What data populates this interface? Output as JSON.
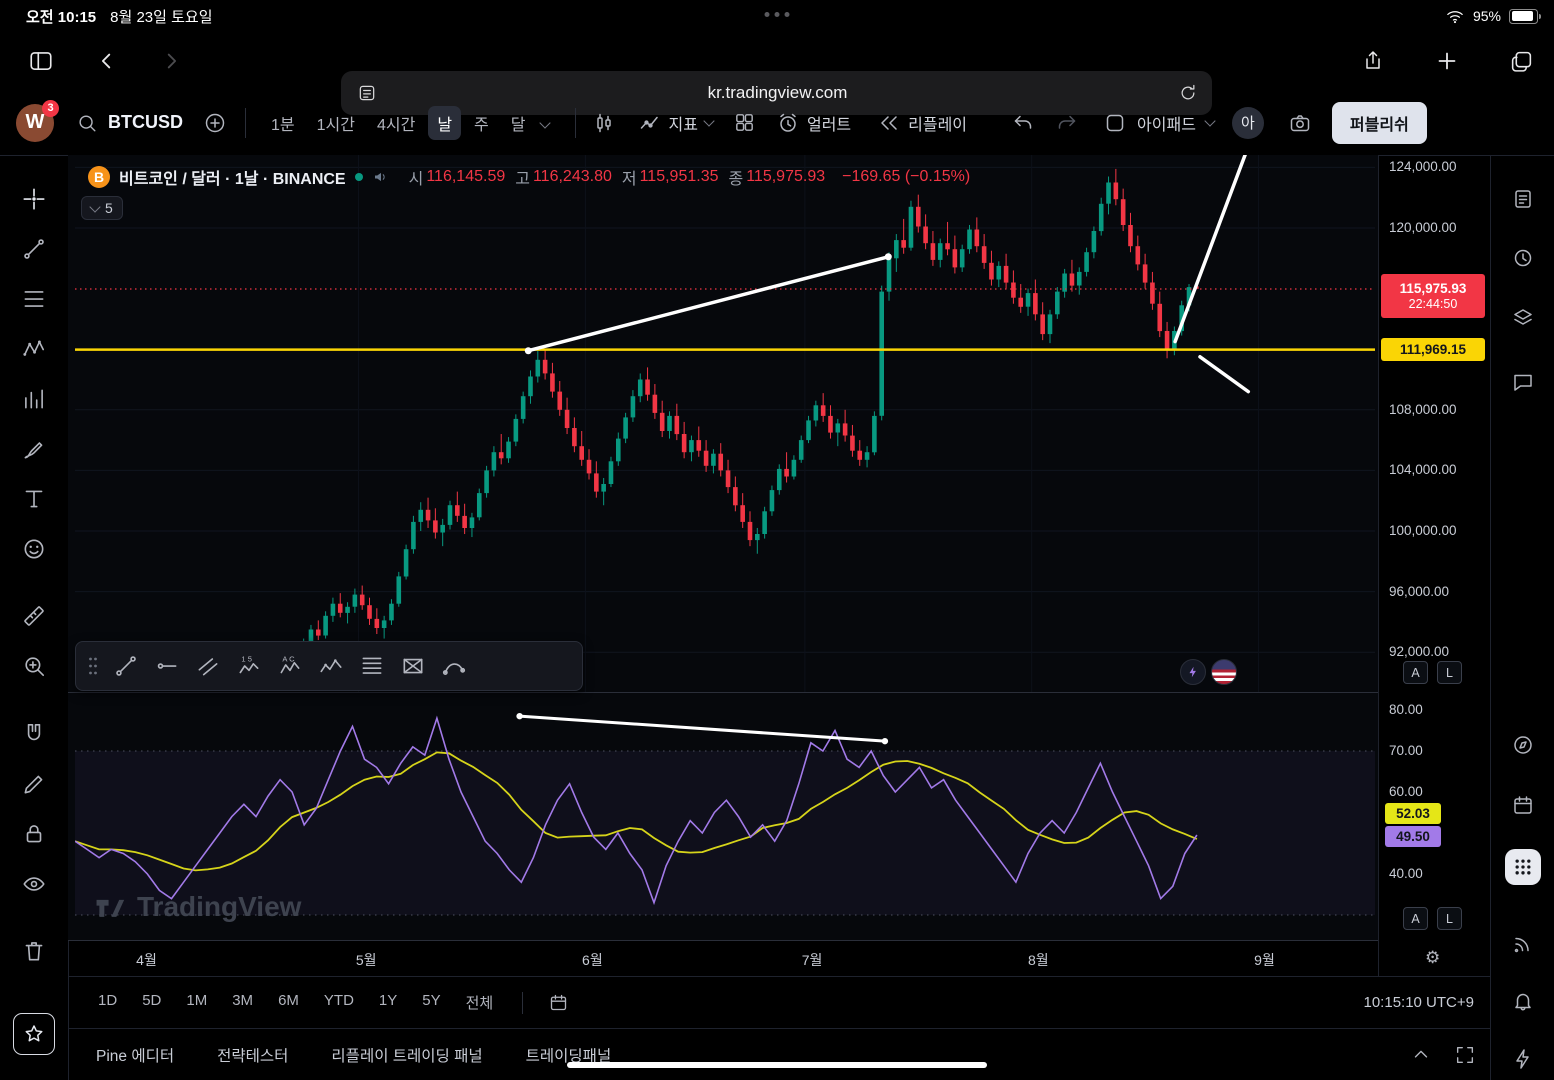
{
  "colors": {
    "up": "#089981",
    "down": "#f23645",
    "yellow_line": "#fad505",
    "rsi": "#a27ae8",
    "rsi_ma": "#d6d41a",
    "drawing": "#ffffff"
  },
  "status_bar": {
    "time": "오전 10:15",
    "date": "8월 23일 토요일",
    "battery": "95%"
  },
  "browser": {
    "url": "kr.tradingview.com"
  },
  "header": {
    "logo_letter": "W",
    "logo_badge": "3",
    "symbol": "BTCUSD",
    "intervals": [
      "1분",
      "1시간",
      "4시간",
      "날",
      "주",
      "달"
    ],
    "active_interval": "날",
    "indicators_label": "지표",
    "alerts_label": "얼러트",
    "replay_label": "리플레이",
    "layout_label": "아이패드",
    "avatar_letter": "아",
    "publish_label": "퍼블리쉬"
  },
  "legend": {
    "title": "비트코인 / 달러 · 1날 · BINANCE",
    "ohlc": [
      {
        "label": "시",
        "value": "116,145.59"
      },
      {
        "label": "고",
        "value": "116,243.80"
      },
      {
        "label": "저",
        "value": "115,951.35"
      },
      {
        "label": "종",
        "value": "115,975.93"
      }
    ],
    "change": "−169.65 (−0.15%)",
    "collapsed_count": "5"
  },
  "price_axis": {
    "gridlines": [
      {
        "value": 124,
        "text": "124,000.00"
      },
      {
        "value": 120,
        "text": "120,000.00"
      },
      {
        "value": 108,
        "text": "108,000.00"
      },
      {
        "value": 104,
        "text": "104,000.00"
      },
      {
        "value": 100,
        "text": "100,000.00"
      },
      {
        "value": 96,
        "text": "96,000.00"
      },
      {
        "value": 92,
        "text": "92,000.00"
      }
    ],
    "last_price": {
      "text": "115,975.93",
      "countdown": "22:44:50"
    },
    "level_label": "111,969.15",
    "auto_label": "A",
    "log_label": "L"
  },
  "rsi_axis": {
    "gridlines": [
      {
        "value": 80,
        "text": "80.00"
      },
      {
        "value": 70,
        "text": "70.00"
      },
      {
        "value": 60,
        "text": "60.00"
      },
      {
        "value": 40,
        "text": "40.00"
      }
    ],
    "ma_label": "52.03",
    "rsi_label": "49.50",
    "auto_label": "A",
    "log_label": "L"
  },
  "time_axis": {
    "months": [
      "4월",
      "5월",
      "6월",
      "7월",
      "8월",
      "9월"
    ]
  },
  "watermark": "TradingView",
  "range_bar": {
    "ranges": [
      "1D",
      "5D",
      "1M",
      "3M",
      "6M",
      "YTD",
      "1Y",
      "5Y",
      "전체"
    ],
    "clock": "10:15:10 UTC+9"
  },
  "bottom_tabs": [
    "Pine 에디터",
    "전략테스터",
    "리플레이 트레이딩 패널",
    "트레이딩패널"
  ],
  "left_tools": [
    "crosshair",
    "trendline",
    "fib-levels",
    "xabcd-pattern",
    "forecast",
    "brush",
    "text",
    "emoji",
    "ruler",
    "zoom-in",
    "magnet",
    "edit",
    "lock",
    "eye",
    "trash"
  ],
  "floating_tools": [
    "trendline",
    "horizontal-ray",
    "parallel-channel",
    "pattern-15",
    "pattern-ac",
    "elliott-wave",
    "fib-retracement",
    "gann-box",
    "curve"
  ],
  "right_tools": [
    "watchlist",
    "alerts-clock",
    "object-tree",
    "chat",
    "ideas",
    "calendar",
    "apps-grid",
    "signal",
    "bell",
    "lightning"
  ],
  "chart_data": [
    {
      "type": "candlestick",
      "title": "비트코인 / 달러 1날 BINANCE",
      "unit": "USD_thousands",
      "visible_price_range": [
        91.5,
        125.3
      ],
      "x_categories_months": [
        "4월",
        "5월",
        "6월",
        "7월",
        "8월",
        "9월"
      ],
      "candles": [
        [
          92.1,
          92.9,
          91.8,
          92.6
        ],
        [
          92.6,
          93.8,
          92.2,
          93.5
        ],
        [
          93.5,
          94.1,
          92.8,
          93.1
        ],
        [
          93.1,
          94.7,
          92.9,
          94.4
        ],
        [
          94.4,
          95.6,
          94.0,
          95.2
        ],
        [
          95.2,
          95.9,
          94.3,
          94.6
        ],
        [
          94.6,
          95.3,
          93.9,
          95.0
        ],
        [
          95.0,
          96.2,
          94.6,
          95.8
        ],
        [
          95.8,
          96.4,
          94.8,
          95.1
        ],
        [
          95.1,
          95.6,
          93.8,
          94.2
        ],
        [
          94.2,
          94.9,
          93.2,
          93.6
        ],
        [
          93.6,
          94.4,
          92.9,
          94.1
        ],
        [
          94.1,
          95.5,
          93.8,
          95.2
        ],
        [
          95.2,
          97.3,
          95.0,
          97.0
        ],
        [
          97.0,
          99.1,
          96.8,
          98.8
        ],
        [
          98.8,
          101.0,
          98.5,
          100.6
        ],
        [
          100.6,
          101.9,
          100.0,
          101.4
        ],
        [
          101.4,
          102.2,
          100.2,
          100.7
        ],
        [
          100.7,
          101.5,
          99.5,
          99.9
        ],
        [
          99.9,
          100.8,
          99.0,
          100.4
        ],
        [
          100.4,
          102.0,
          100.1,
          101.7
        ],
        [
          101.7,
          102.6,
          100.6,
          101.0
        ],
        [
          101.0,
          101.8,
          99.8,
          100.2
        ],
        [
          100.2,
          101.2,
          99.6,
          100.9
        ],
        [
          100.9,
          102.8,
          100.7,
          102.5
        ],
        [
          102.5,
          104.3,
          102.2,
          104.0
        ],
        [
          104.0,
          105.6,
          103.6,
          105.2
        ],
        [
          105.2,
          106.4,
          104.4,
          104.8
        ],
        [
          104.8,
          106.2,
          104.5,
          105.9
        ],
        [
          105.9,
          107.7,
          105.6,
          107.4
        ],
        [
          107.4,
          109.2,
          107.1,
          108.9
        ],
        [
          108.9,
          110.6,
          108.4,
          110.2
        ],
        [
          110.2,
          111.9,
          109.8,
          111.3
        ],
        [
          111.3,
          112.0,
          110.0,
          110.4
        ],
        [
          110.4,
          111.1,
          108.8,
          109.2
        ],
        [
          109.2,
          109.9,
          107.6,
          108.0
        ],
        [
          108.0,
          108.8,
          106.4,
          106.8
        ],
        [
          106.8,
          107.5,
          105.2,
          105.6
        ],
        [
          105.6,
          106.6,
          104.3,
          104.7
        ],
        [
          104.7,
          105.4,
          103.4,
          103.8
        ],
        [
          103.8,
          104.6,
          102.2,
          102.6
        ],
        [
          102.6,
          103.5,
          101.7,
          103.1
        ],
        [
          103.1,
          104.9,
          102.9,
          104.6
        ],
        [
          104.6,
          106.5,
          104.3,
          106.1
        ],
        [
          106.1,
          107.8,
          105.8,
          107.5
        ],
        [
          107.5,
          109.3,
          107.2,
          108.9
        ],
        [
          108.9,
          110.4,
          108.5,
          110.0
        ],
        [
          110.0,
          110.8,
          108.6,
          109.0
        ],
        [
          109.0,
          109.7,
          107.4,
          107.8
        ],
        [
          107.8,
          108.6,
          106.2,
          106.6
        ],
        [
          106.6,
          107.9,
          106.1,
          107.6
        ],
        [
          107.6,
          108.4,
          106.0,
          106.4
        ],
        [
          106.4,
          107.2,
          104.8,
          105.2
        ],
        [
          105.2,
          106.3,
          104.6,
          106.0
        ],
        [
          106.0,
          106.9,
          104.9,
          105.3
        ],
        [
          105.3,
          106.0,
          103.9,
          104.3
        ],
        [
          104.3,
          105.4,
          103.8,
          105.1
        ],
        [
          105.1,
          105.8,
          103.6,
          104.0
        ],
        [
          104.0,
          104.7,
          102.5,
          102.9
        ],
        [
          102.9,
          103.6,
          101.3,
          101.7
        ],
        [
          101.7,
          102.5,
          100.2,
          100.6
        ],
        [
          100.6,
          101.3,
          99.0,
          99.4
        ],
        [
          99.4,
          100.2,
          98.5,
          99.8
        ],
        [
          99.8,
          101.6,
          99.5,
          101.3
        ],
        [
          101.3,
          103.0,
          101.0,
          102.7
        ],
        [
          102.7,
          104.4,
          102.4,
          104.1
        ],
        [
          104.1,
          105.2,
          103.2,
          103.6
        ],
        [
          103.6,
          105.0,
          103.4,
          104.7
        ],
        [
          104.7,
          106.3,
          104.5,
          106.0
        ],
        [
          106.0,
          107.6,
          105.8,
          107.3
        ],
        [
          107.3,
          108.6,
          106.9,
          108.3
        ],
        [
          108.3,
          109.1,
          107.2,
          107.6
        ],
        [
          107.6,
          108.3,
          106.1,
          106.5
        ],
        [
          106.5,
          107.4,
          105.6,
          107.1
        ],
        [
          107.1,
          108.0,
          105.9,
          106.3
        ],
        [
          106.3,
          107.0,
          104.9,
          105.3
        ],
        [
          105.3,
          106.0,
          104.3,
          104.7
        ],
        [
          104.7,
          105.6,
          104.2,
          105.2
        ],
        [
          105.2,
          107.9,
          105.0,
          107.6
        ],
        [
          107.6,
          116.2,
          107.3,
          115.8
        ],
        [
          115.8,
          118.4,
          115.2,
          118.0
        ],
        [
          118.0,
          119.6,
          117.1,
          119.2
        ],
        [
          119.2,
          120.6,
          118.3,
          118.7
        ],
        [
          118.7,
          121.8,
          118.5,
          121.4
        ],
        [
          121.4,
          122.2,
          119.7,
          120.1
        ],
        [
          120.1,
          120.9,
          118.6,
          119.0
        ],
        [
          119.0,
          119.8,
          117.5,
          117.9
        ],
        [
          117.9,
          119.3,
          117.4,
          119.0
        ],
        [
          119.0,
          120.4,
          118.2,
          118.6
        ],
        [
          118.6,
          119.5,
          117.0,
          117.4
        ],
        [
          117.4,
          118.9,
          117.1,
          118.6
        ],
        [
          118.6,
          120.2,
          118.3,
          119.9
        ],
        [
          119.9,
          120.7,
          118.4,
          118.8
        ],
        [
          118.8,
          119.6,
          117.3,
          117.7
        ],
        [
          117.7,
          118.5,
          116.2,
          116.6
        ],
        [
          116.6,
          117.8,
          116.1,
          117.5
        ],
        [
          117.5,
          118.3,
          116.0,
          116.4
        ],
        [
          116.4,
          117.2,
          115.0,
          115.4
        ],
        [
          115.4,
          116.3,
          114.4,
          114.8
        ],
        [
          114.8,
          116.0,
          114.2,
          115.7
        ],
        [
          115.7,
          116.6,
          113.9,
          114.3
        ],
        [
          114.3,
          115.1,
          112.6,
          113.0
        ],
        [
          113.0,
          114.6,
          112.4,
          114.3
        ],
        [
          114.3,
          116.1,
          114.0,
          115.8
        ],
        [
          115.8,
          117.3,
          115.4,
          117.0
        ],
        [
          117.0,
          117.9,
          115.8,
          116.2
        ],
        [
          116.2,
          117.4,
          115.6,
          117.1
        ],
        [
          117.1,
          118.7,
          116.8,
          118.4
        ],
        [
          118.4,
          120.1,
          118.0,
          119.8
        ],
        [
          119.8,
          122.0,
          119.5,
          121.6
        ],
        [
          121.6,
          123.4,
          120.9,
          123.0
        ],
        [
          123.0,
          123.9,
          121.5,
          121.9
        ],
        [
          121.9,
          122.6,
          119.8,
          120.2
        ],
        [
          120.2,
          121.0,
          118.4,
          118.8
        ],
        [
          118.8,
          119.5,
          117.2,
          117.6
        ],
        [
          117.6,
          118.3,
          116.0,
          116.4
        ],
        [
          116.4,
          117.1,
          114.6,
          115.0
        ],
        [
          115.0,
          115.8,
          112.8,
          113.2
        ],
        [
          113.2,
          113.8,
          111.4,
          112.0
        ],
        [
          112.0,
          113.5,
          111.6,
          113.2
        ],
        [
          113.2,
          115.2,
          112.9,
          114.9
        ],
        [
          114.9,
          116.3,
          114.5,
          116.1
        ],
        [
          116.15,
          116.24,
          115.95,
          115.98
        ]
      ],
      "overlays": {
        "last_price": 115.976,
        "yellow_level": 111.969,
        "trendlines": [
          {
            "points": [
              [
                30.7,
                111.9
              ],
              [
                79.9,
                118.1
              ]
            ],
            "dots": true
          },
          {
            "points": [
              [
                128.8,
                125.0
              ],
              [
                119.1,
                112.5
              ]
            ],
            "dots": false
          },
          {
            "points": [
              [
                122.5,
                111.5
              ],
              [
                129.1,
                109.2
              ]
            ],
            "dots": false
          }
        ]
      }
    },
    {
      "type": "line",
      "name": "RSI",
      "range": [
        0,
        100
      ],
      "levels": [
        70,
        30
      ],
      "ma_window": 9,
      "rsi_last": 49.5,
      "ma_last": 52.03,
      "values": [
        48,
        46,
        44,
        46,
        45,
        43,
        40,
        36,
        34,
        38,
        42,
        46,
        50,
        54,
        57,
        54,
        59,
        63,
        60,
        52,
        56,
        63,
        70,
        76,
        68,
        66,
        62,
        67,
        71,
        69,
        78,
        68,
        60,
        54,
        48,
        45,
        41,
        38,
        44,
        52,
        58,
        62,
        55,
        49,
        46,
        50,
        45,
        41,
        33,
        42,
        48,
        53,
        50,
        55,
        58,
        54,
        49,
        52,
        48,
        53,
        62,
        72,
        70,
        75,
        68,
        66,
        70,
        64,
        60,
        63,
        66,
        61,
        63,
        58,
        54,
        50,
        46,
        42,
        38,
        45,
        50,
        53,
        50,
        55,
        61,
        67,
        60,
        54,
        48,
        42,
        34,
        37,
        45,
        49.5
      ],
      "trendline": {
        "points_frac": [
          [
            0.342,
            78.5
          ],
          [
            0.623,
            72.4
          ]
        ],
        "dots": true
      }
    }
  ]
}
